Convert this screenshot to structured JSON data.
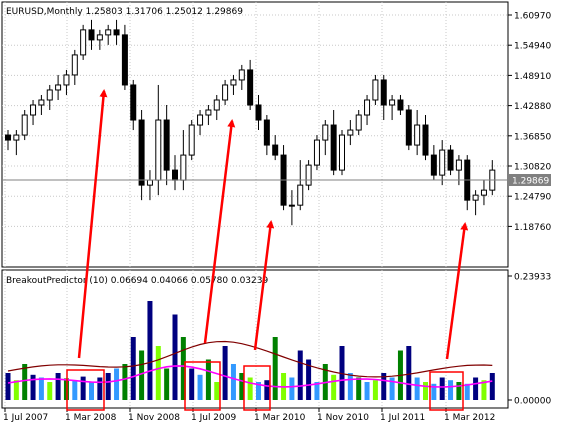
{
  "main_panel": {
    "title": "EURUSD,Monthly  1.25803 1.31706 1.25012 1.29869",
    "price_labels": [
      "1.60970",
      "1.54940",
      "1.48910",
      "1.42880",
      "1.36850",
      "1.30820",
      "1.24790",
      "1.18760"
    ],
    "current_price": "1.29869",
    "current_price_value": 1.29869
  },
  "indicator_panel": {
    "title": "BreakoutPredictor (10) 0.06694 0.04066 0.05780 0.03239",
    "scale_labels": [
      "0.23933",
      "0.00000"
    ]
  },
  "time_labels": [
    "1 Jul 2007",
    "1 Mar 2008",
    "1 Nov 2008",
    "1 Jul 2009",
    "1 Mar 2010",
    "1 Nov 2010",
    "1 Jul 2011",
    "1 Mar 2012"
  ],
  "colors": {
    "bull_candle": "#ffffff",
    "bear_candle": "#000000",
    "grid": "#c0c0c0",
    "arrow": "#ff0000",
    "highlight_box": "#ff0000",
    "bar_navy": "#00007f",
    "bar_green": "#008000",
    "bar_lightgreen": "#80ff00",
    "bar_lightblue": "#3399ff",
    "line_brown": "#800000",
    "line_magenta": "#ff00ff",
    "price_tag_bg": "#808080"
  }
}
